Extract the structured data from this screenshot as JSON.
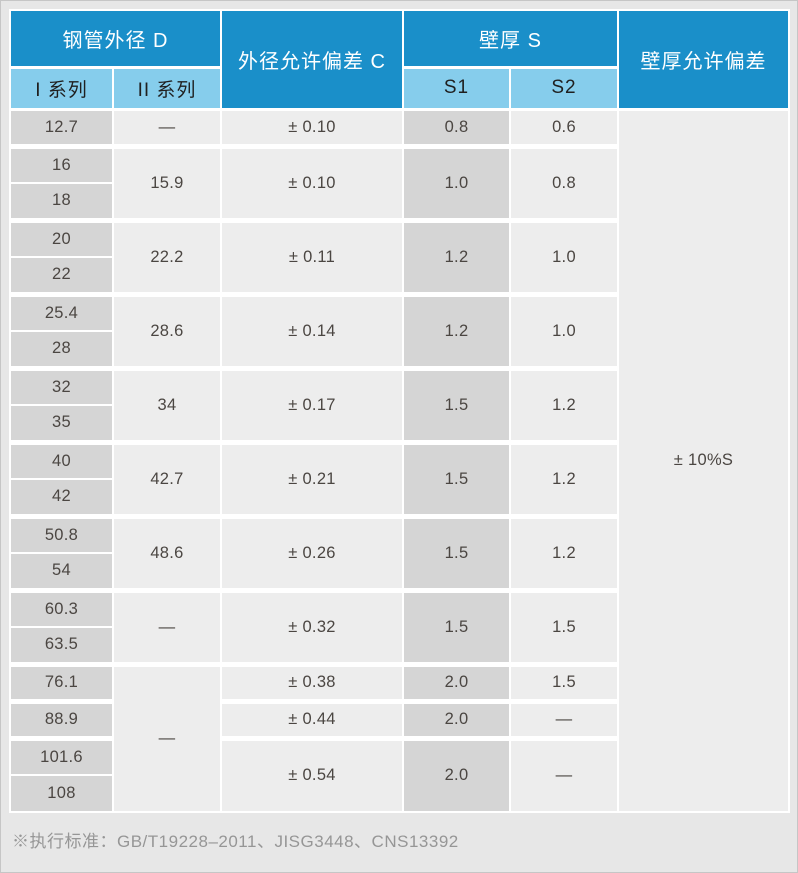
{
  "colors": {
    "page_bg": "#e7e7e7",
    "header_dark": "#1a8fc9",
    "header_light": "#86cdec",
    "cell_shaded": "#d5d5d5",
    "cell_plain": "#ededed",
    "grid_white": "#ffffff",
    "text_dark": "#4b4642",
    "footer_text": "#969696"
  },
  "table": {
    "header": {
      "outer_diameter": "钢管外径 D",
      "od_tolerance": "外径允许偏差 C",
      "wall_thickness": "壁厚 S",
      "wall_tolerance": "壁厚允许偏差",
      "series1": "I 系列",
      "series2": "II 系列",
      "s1": "S1",
      "s2": "S2"
    },
    "wall_tolerance_value": "± 10%S",
    "rows": [
      {
        "group_start": false,
        "cells": [
          {
            "name": "cell-series1",
            "text": "12.7",
            "rowspan": 1,
            "shade": true
          },
          {
            "name": "cell-series2",
            "text": "—",
            "rowspan": 1,
            "shade": false
          },
          {
            "name": "cell-od-tolerance",
            "text": "± 0.10",
            "rowspan": 1,
            "shade": false
          },
          {
            "name": "cell-s1",
            "text": "0.8",
            "rowspan": 1,
            "shade": true
          },
          {
            "name": "cell-s2",
            "text": "0.6",
            "rowspan": 1,
            "shade": false
          },
          {
            "name": "wall-tolerance-cell",
            "text": "± 10%S",
            "rowspan": 19,
            "shade": false
          }
        ]
      },
      {
        "group_start": true,
        "cells": [
          {
            "name": "cell-series1",
            "text": "16",
            "rowspan": 1,
            "shade": true
          },
          {
            "name": "cell-series2",
            "text": "15.9",
            "rowspan": 2,
            "shade": false
          },
          {
            "name": "cell-od-tolerance",
            "text": "± 0.10",
            "rowspan": 2,
            "shade": false
          },
          {
            "name": "cell-s1",
            "text": "1.0",
            "rowspan": 2,
            "shade": true
          },
          {
            "name": "cell-s2",
            "text": "0.8",
            "rowspan": 2,
            "shade": false
          }
        ]
      },
      {
        "group_start": false,
        "cells": [
          {
            "name": "cell-series1",
            "text": "18",
            "rowspan": 1,
            "shade": true
          }
        ]
      },
      {
        "group_start": true,
        "cells": [
          {
            "name": "cell-series1",
            "text": "20",
            "rowspan": 1,
            "shade": true
          },
          {
            "name": "cell-series2",
            "text": "22.2",
            "rowspan": 2,
            "shade": false
          },
          {
            "name": "cell-od-tolerance",
            "text": "± 0.11",
            "rowspan": 2,
            "shade": false
          },
          {
            "name": "cell-s1",
            "text": "1.2",
            "rowspan": 2,
            "shade": true
          },
          {
            "name": "cell-s2",
            "text": "1.0",
            "rowspan": 2,
            "shade": false
          }
        ]
      },
      {
        "group_start": false,
        "cells": [
          {
            "name": "cell-series1",
            "text": "22",
            "rowspan": 1,
            "shade": true
          }
        ]
      },
      {
        "group_start": true,
        "cells": [
          {
            "name": "cell-series1",
            "text": "25.4",
            "rowspan": 1,
            "shade": true
          },
          {
            "name": "cell-series2",
            "text": "28.6",
            "rowspan": 2,
            "shade": false
          },
          {
            "name": "cell-od-tolerance",
            "text": "± 0.14",
            "rowspan": 2,
            "shade": false
          },
          {
            "name": "cell-s1",
            "text": "1.2",
            "rowspan": 2,
            "shade": true
          },
          {
            "name": "cell-s2",
            "text": "1.0",
            "rowspan": 2,
            "shade": false
          }
        ]
      },
      {
        "group_start": false,
        "cells": [
          {
            "name": "cell-series1",
            "text": "28",
            "rowspan": 1,
            "shade": true
          }
        ]
      },
      {
        "group_start": true,
        "cells": [
          {
            "name": "cell-series1",
            "text": "32",
            "rowspan": 1,
            "shade": true
          },
          {
            "name": "cell-series2",
            "text": "34",
            "rowspan": 2,
            "shade": false
          },
          {
            "name": "cell-od-tolerance",
            "text": "± 0.17",
            "rowspan": 2,
            "shade": false
          },
          {
            "name": "cell-s1",
            "text": "1.5",
            "rowspan": 2,
            "shade": true
          },
          {
            "name": "cell-s2",
            "text": "1.2",
            "rowspan": 2,
            "shade": false
          }
        ]
      },
      {
        "group_start": false,
        "cells": [
          {
            "name": "cell-series1",
            "text": "35",
            "rowspan": 1,
            "shade": true
          }
        ]
      },
      {
        "group_start": true,
        "cells": [
          {
            "name": "cell-series1",
            "text": "40",
            "rowspan": 1,
            "shade": true
          },
          {
            "name": "cell-series2",
            "text": "42.7",
            "rowspan": 2,
            "shade": false
          },
          {
            "name": "cell-od-tolerance",
            "text": "± 0.21",
            "rowspan": 2,
            "shade": false
          },
          {
            "name": "cell-s1",
            "text": "1.5",
            "rowspan": 2,
            "shade": true
          },
          {
            "name": "cell-s2",
            "text": "1.2",
            "rowspan": 2,
            "shade": false
          }
        ]
      },
      {
        "group_start": false,
        "cells": [
          {
            "name": "cell-series1",
            "text": "42",
            "rowspan": 1,
            "shade": true
          }
        ]
      },
      {
        "group_start": true,
        "cells": [
          {
            "name": "cell-series1",
            "text": "50.8",
            "rowspan": 1,
            "shade": true
          },
          {
            "name": "cell-series2",
            "text": "48.6",
            "rowspan": 2,
            "shade": false
          },
          {
            "name": "cell-od-tolerance",
            "text": "± 0.26",
            "rowspan": 2,
            "shade": false
          },
          {
            "name": "cell-s1",
            "text": "1.5",
            "rowspan": 2,
            "shade": true
          },
          {
            "name": "cell-s2",
            "text": "1.2",
            "rowspan": 2,
            "shade": false
          }
        ]
      },
      {
        "group_start": false,
        "cells": [
          {
            "name": "cell-series1",
            "text": "54",
            "rowspan": 1,
            "shade": true
          }
        ]
      },
      {
        "group_start": true,
        "cells": [
          {
            "name": "cell-series1",
            "text": "60.3",
            "rowspan": 1,
            "shade": true
          },
          {
            "name": "cell-series2",
            "text": "—",
            "rowspan": 2,
            "shade": false
          },
          {
            "name": "cell-od-tolerance",
            "text": "± 0.32",
            "rowspan": 2,
            "shade": false
          },
          {
            "name": "cell-s1",
            "text": "1.5",
            "rowspan": 2,
            "shade": true
          },
          {
            "name": "cell-s2",
            "text": "1.5",
            "rowspan": 2,
            "shade": false
          }
        ]
      },
      {
        "group_start": false,
        "cells": [
          {
            "name": "cell-series1",
            "text": "63.5",
            "rowspan": 1,
            "shade": true
          }
        ]
      },
      {
        "group_start": true,
        "cells": [
          {
            "name": "cell-series1",
            "text": "76.1",
            "rowspan": 1,
            "shade": true
          },
          {
            "name": "cell-series2",
            "text": "—",
            "rowspan": 4,
            "shade": false
          },
          {
            "name": "cell-od-tolerance",
            "text": "± 0.38",
            "rowspan": 1,
            "shade": false
          },
          {
            "name": "cell-s1",
            "text": "2.0",
            "rowspan": 1,
            "shade": true
          },
          {
            "name": "cell-s2",
            "text": "1.5",
            "rowspan": 1,
            "shade": false
          }
        ]
      },
      {
        "group_start": true,
        "cells": [
          {
            "name": "cell-series1",
            "text": "88.9",
            "rowspan": 1,
            "shade": true
          },
          {
            "name": "cell-od-tolerance",
            "text": "± 0.44",
            "rowspan": 1,
            "shade": false
          },
          {
            "name": "cell-s1",
            "text": "2.0",
            "rowspan": 1,
            "shade": true
          },
          {
            "name": "cell-s2",
            "text": "—",
            "rowspan": 1,
            "shade": false
          }
        ]
      },
      {
        "group_start": true,
        "cells": [
          {
            "name": "cell-series1",
            "text": "101.6",
            "rowspan": 1,
            "shade": true
          },
          {
            "name": "cell-od-tolerance",
            "text": "± 0.54",
            "rowspan": 2,
            "shade": false
          },
          {
            "name": "cell-s1",
            "text": "2.0",
            "rowspan": 2,
            "shade": true
          },
          {
            "name": "cell-s2",
            "text": "—",
            "rowspan": 2,
            "shade": false
          }
        ]
      },
      {
        "group_start": false,
        "cells": [
          {
            "name": "cell-series1",
            "text": "108",
            "rowspan": 1,
            "shade": true
          }
        ]
      }
    ]
  },
  "footer": {
    "note": "※执行标准：GB/T19228–2011、JISG3448、CNS13392"
  }
}
